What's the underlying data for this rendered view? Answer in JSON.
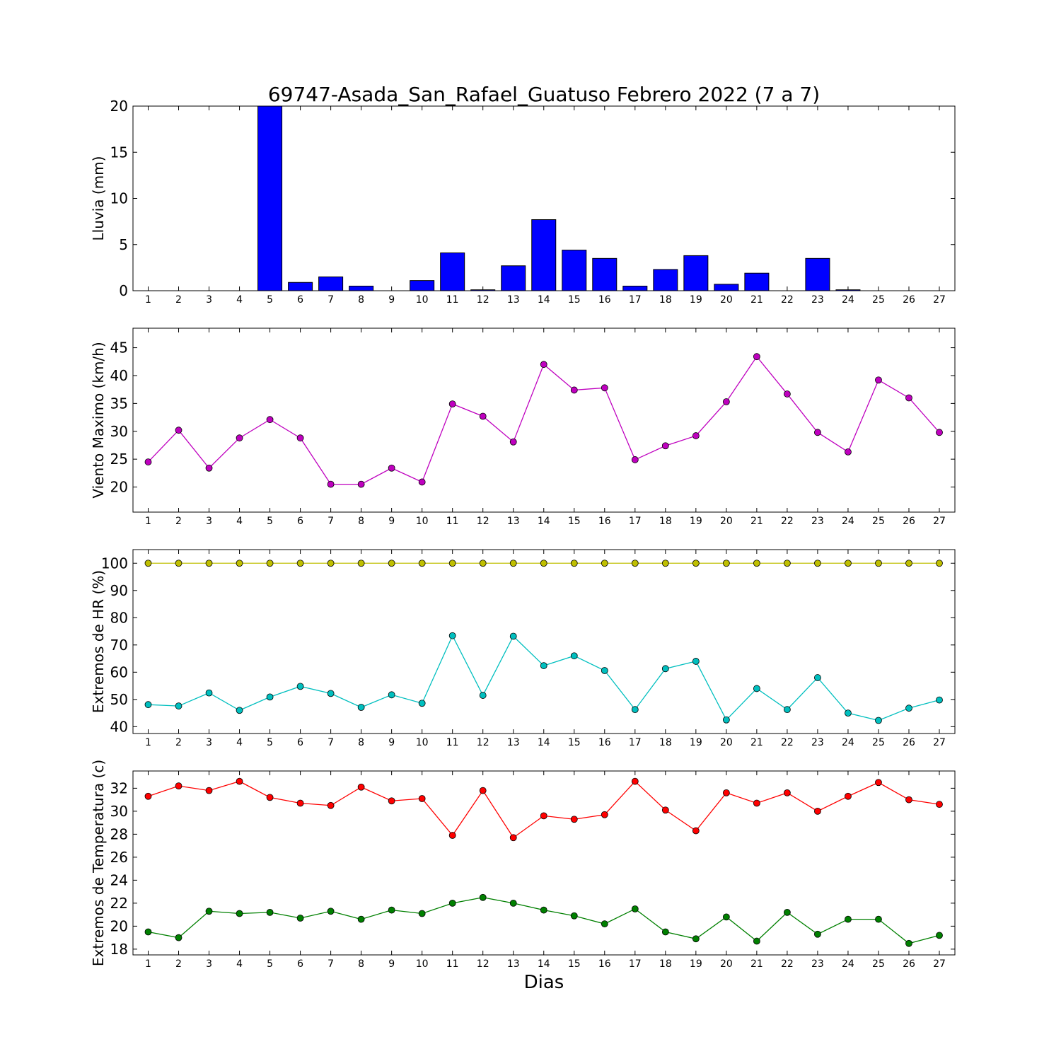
{
  "figure": {
    "title": "69747-Asada_San_Rafael_Guatuso Febrero 2022  (7 a 7)",
    "xlabel": "Dias"
  },
  "chart_data": [
    {
      "type": "bar",
      "ylabel": "Lluvia (mm)",
      "ylim": [
        0,
        20
      ],
      "yticks": [
        0,
        5,
        10,
        15,
        20
      ],
      "categories": [
        1,
        2,
        3,
        4,
        5,
        6,
        7,
        8,
        9,
        10,
        11,
        12,
        13,
        14,
        15,
        16,
        17,
        18,
        19,
        20,
        21,
        22,
        23,
        24,
        25,
        26,
        27
      ],
      "values": [
        0,
        0,
        0,
        0,
        20.0,
        0.9,
        1.5,
        0.5,
        0,
        1.1,
        4.1,
        0.1,
        2.7,
        7.7,
        4.4,
        3.5,
        0.5,
        2.3,
        3.8,
        0.7,
        1.9,
        0,
        3.5,
        0.1,
        0,
        0,
        0
      ],
      "color": "#0000ff"
    },
    {
      "type": "line",
      "ylabel": "Viento Maximo (km/h)",
      "ylim": [
        15.5,
        48.5
      ],
      "yticks": [
        20,
        25,
        30,
        35,
        40,
        45
      ],
      "x": [
        1,
        2,
        3,
        4,
        5,
        6,
        7,
        8,
        9,
        10,
        11,
        12,
        13,
        14,
        15,
        16,
        17,
        18,
        19,
        20,
        21,
        22,
        23,
        24,
        25,
        26,
        27
      ],
      "series": [
        {
          "values": [
            24.5,
            30.2,
            23.4,
            28.8,
            32.1,
            28.8,
            20.5,
            20.5,
            23.4,
            20.9,
            34.9,
            32.7,
            28.1,
            42.0,
            37.4,
            37.8,
            24.9,
            27.4,
            29.2,
            35.3,
            43.4,
            36.7,
            29.8,
            26.3,
            39.2,
            36.0,
            29.8
          ],
          "color": "#bf00bf"
        }
      ]
    },
    {
      "type": "line",
      "ylabel": "Extremos de HR (%)",
      "ylim": [
        37.5,
        105
      ],
      "yticks": [
        40,
        50,
        60,
        70,
        80,
        90,
        100
      ],
      "x": [
        1,
        2,
        3,
        4,
        5,
        6,
        7,
        8,
        9,
        10,
        11,
        12,
        13,
        14,
        15,
        16,
        17,
        18,
        19,
        20,
        21,
        22,
        23,
        24,
        25,
        26,
        27
      ],
      "series": [
        {
          "values": [
            100,
            100,
            100,
            100,
            100,
            100,
            100,
            100,
            100,
            100,
            100,
            100,
            100,
            100,
            100,
            100,
            100,
            100,
            100,
            100,
            100,
            100,
            100,
            100,
            100,
            100,
            100
          ],
          "color": "#bfbf00"
        },
        {
          "values": [
            48.1,
            47.6,
            52.4,
            46.0,
            50.9,
            54.8,
            52.2,
            47.1,
            51.7,
            48.6,
            73.4,
            51.5,
            73.2,
            62.4,
            66.0,
            60.6,
            46.3,
            61.3,
            64.0,
            42.5,
            54.0,
            46.3,
            58.0,
            45.0,
            42.3,
            46.8,
            49.8
          ],
          "color": "#00bfbf"
        }
      ]
    },
    {
      "type": "line",
      "ylabel": "Extremos de Temperatura (c)",
      "ylim": [
        17.5,
        33.5
      ],
      "yticks": [
        18,
        20,
        22,
        24,
        26,
        28,
        30,
        32
      ],
      "x": [
        1,
        2,
        3,
        4,
        5,
        6,
        7,
        8,
        9,
        10,
        11,
        12,
        13,
        14,
        15,
        16,
        17,
        18,
        19,
        20,
        21,
        22,
        23,
        24,
        25,
        26,
        27
      ],
      "series": [
        {
          "values": [
            31.3,
            32.2,
            31.8,
            32.6,
            31.2,
            30.7,
            30.5,
            32.1,
            30.9,
            31.1,
            27.9,
            31.8,
            27.7,
            29.6,
            29.3,
            29.7,
            32.6,
            30.1,
            28.3,
            31.6,
            30.7,
            31.6,
            30.0,
            31.3,
            32.5,
            31.0,
            30.6
          ],
          "color": "#ff0000"
        },
        {
          "values": [
            19.5,
            19.0,
            21.3,
            21.1,
            21.2,
            20.7,
            21.3,
            20.6,
            21.4,
            21.1,
            22.0,
            22.5,
            22.0,
            21.4,
            20.9,
            20.2,
            21.5,
            19.5,
            18.9,
            20.8,
            18.7,
            21.2,
            19.3,
            20.6,
            20.6,
            18.5,
            19.2
          ],
          "color": "#008000"
        }
      ]
    }
  ]
}
